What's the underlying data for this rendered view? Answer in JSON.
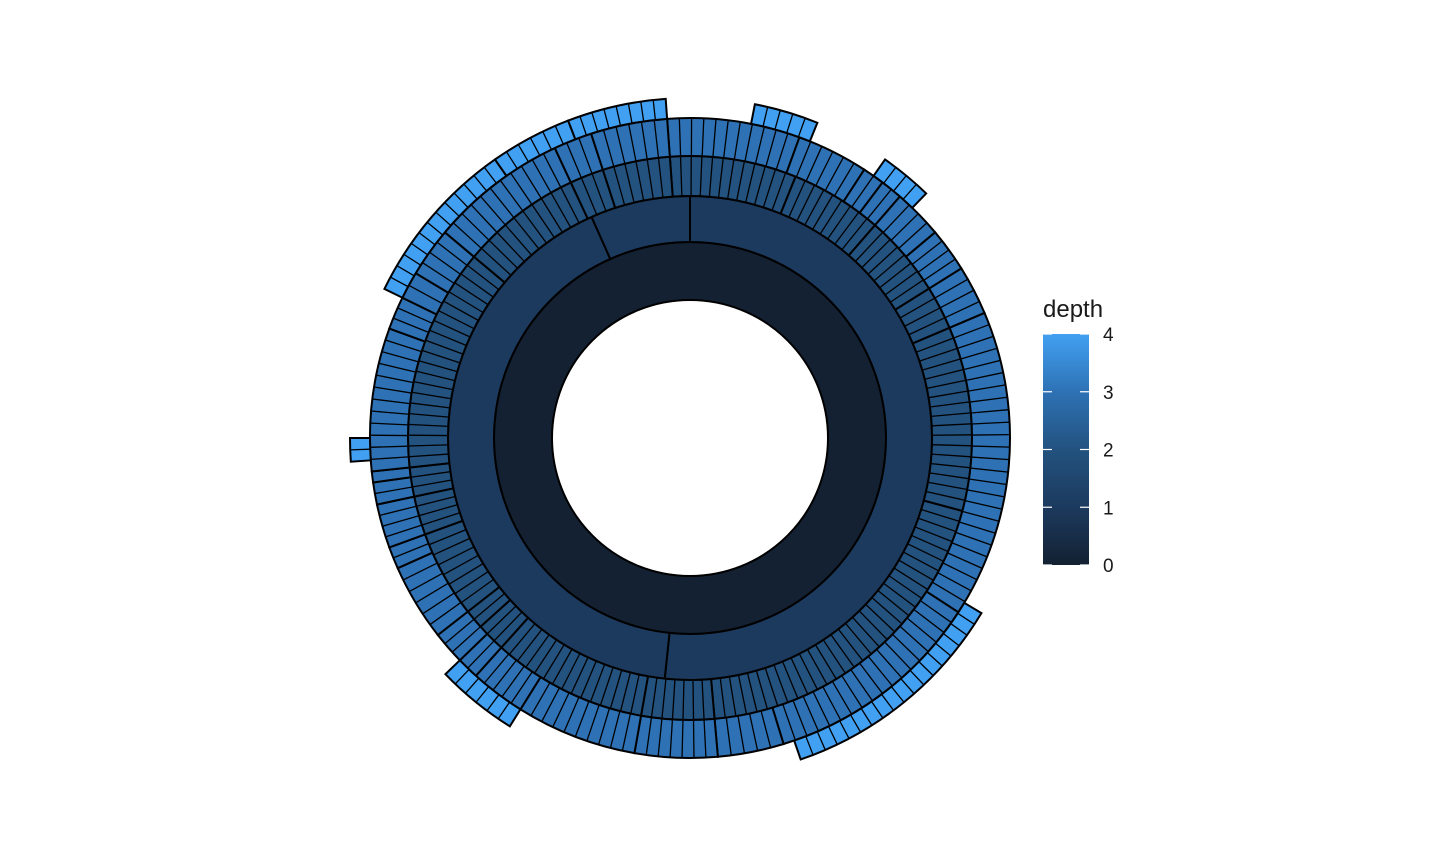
{
  "chart_data": {
    "type": "sunburst",
    "title": "",
    "legend": {
      "title": "depth",
      "position": "right",
      "range": [
        0,
        4
      ],
      "ticks": [
        "0",
        "1",
        "2",
        "3",
        "4"
      ],
      "colors": [
        "#132132",
        "#1c3a5e",
        "#23527f",
        "#2e72b5",
        "#42a0f2"
      ]
    },
    "outline_color": "#000000",
    "depth_colors": [
      "#132132",
      "#1c3a5e",
      "#23527f",
      "#2e72b5",
      "#42a0f2"
    ],
    "rings": [
      {
        "depth": 0,
        "segments": [
          [
            0,
            360
          ]
        ]
      },
      {
        "depth": 1,
        "segments": [
          [
            0,
            186
          ],
          [
            186,
            336
          ],
          [
            336,
            360
          ]
        ]
      },
      {
        "depth": 2,
        "segments": [
          [
            -4.1,
            22
          ],
          [
            22,
            41
          ],
          [
            41,
            58
          ],
          [
            58,
            67
          ],
          [
            67,
            105
          ],
          [
            105,
            175
          ],
          [
            175,
            190
          ],
          [
            190,
            222
          ],
          [
            222,
            228
          ],
          [
            228,
            232
          ],
          [
            232,
            250
          ],
          [
            250,
            258
          ],
          [
            258,
            264
          ],
          [
            264,
            310
          ],
          [
            310,
            335
          ],
          [
            335,
            342
          ],
          [
            342,
            355.9
          ]
        ]
      },
      {
        "depth": 3,
        "segments": [
          [
            -4.1,
            20
          ],
          [
            20,
            33
          ],
          [
            33,
            37
          ],
          [
            37,
            41
          ],
          [
            41,
            50
          ],
          [
            50,
            58
          ],
          [
            58,
            67
          ],
          [
            67,
            123
          ],
          [
            123,
            163
          ],
          [
            163,
            175
          ],
          [
            175,
            190
          ],
          [
            190,
            212
          ],
          [
            212,
            222
          ],
          [
            222,
            226
          ],
          [
            226,
            232
          ],
          [
            232,
            246
          ],
          [
            246,
            250
          ],
          [
            250,
            258
          ],
          [
            258,
            262
          ],
          [
            262,
            264
          ],
          [
            264,
            290
          ],
          [
            290,
            296
          ],
          [
            296,
            301
          ],
          [
            301,
            310
          ],
          [
            310,
            335
          ],
          [
            335,
            342
          ],
          [
            342,
            355.9
          ]
        ]
      },
      {
        "depth": 4,
        "segments": [
          [
            11,
            22
          ],
          [
            35,
            44
          ],
          [
            121,
            161
          ],
          [
            212,
            226
          ],
          [
            266,
            270
          ],
          [
            296,
            325
          ],
          [
            325,
            339
          ],
          [
            339,
            355.9
          ]
        ]
      }
    ]
  }
}
